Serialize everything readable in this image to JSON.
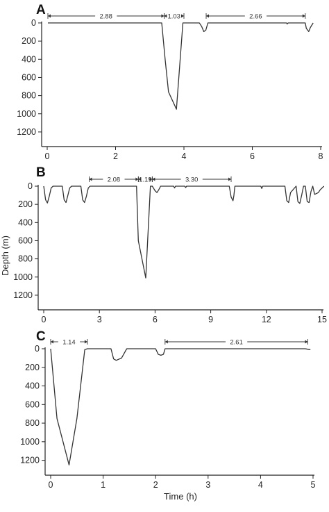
{
  "figure": {
    "ylabel": "Depth (m)",
    "xlabel": "Time (h)"
  },
  "chart_data": [
    {
      "panel": "A",
      "type": "line",
      "xlim": [
        0,
        8
      ],
      "ylim": [
        0,
        1300
      ],
      "y_inverted": true,
      "xticks": [
        0,
        2,
        4,
        6,
        8
      ],
      "yticks": [
        0,
        200,
        400,
        600,
        800,
        1000,
        1200
      ],
      "x": [
        0.02,
        0.5,
        1.0,
        2.0,
        3.0,
        3.35,
        3.45,
        3.55,
        3.78,
        3.97,
        4.0,
        4.45,
        4.52,
        4.58,
        4.64,
        4.7,
        5.5,
        6.5,
        7.0,
        7.02,
        7.05,
        7.55,
        7.58,
        7.65,
        7.7,
        7.78
      ],
      "y": [
        0,
        0,
        0,
        0,
        0,
        0,
        400,
        760,
        950,
        0,
        0,
        0,
        40,
        95,
        80,
        0,
        0,
        0,
        0,
        12,
        0,
        0,
        60,
        95,
        50,
        0
      ],
      "intervals": [
        {
          "start": 0.02,
          "end": 3.42,
          "label": "2.88"
        },
        {
          "start": 3.42,
          "end": 4.0,
          "label": "1.03"
        },
        {
          "start": 4.65,
          "end": 7.55,
          "label": "2.66"
        }
      ]
    },
    {
      "panel": "B",
      "type": "line",
      "xlim": [
        0,
        15
      ],
      "ylim": [
        0,
        1300
      ],
      "y_inverted": true,
      "xticks": [
        0,
        3,
        6,
        9,
        12,
        15
      ],
      "yticks": [
        0,
        200,
        400,
        600,
        800,
        1000,
        1200
      ],
      "x": [
        0.0,
        0.1,
        0.2,
        0.3,
        0.4,
        0.5,
        1.0,
        1.1,
        1.2,
        1.3,
        1.4,
        1.5,
        2.0,
        2.1,
        2.2,
        2.3,
        2.4,
        2.5,
        5.0,
        5.1,
        5.5,
        5.75,
        5.85,
        6.0,
        6.1,
        6.2,
        6.3,
        7.0,
        7.05,
        7.1,
        7.6,
        7.65,
        7.7,
        10.0,
        10.1,
        10.2,
        10.25,
        10.3,
        11.7,
        11.75,
        11.8,
        13.0,
        13.1,
        13.2,
        13.3,
        13.6,
        13.7,
        13.8,
        13.9,
        14.0,
        14.1,
        14.2,
        14.3,
        14.4,
        14.5,
        14.6,
        14.8,
        14.9,
        15.1
      ],
      "y": [
        0,
        150,
        185,
        110,
        20,
        0,
        0,
        150,
        180,
        100,
        20,
        0,
        0,
        150,
        180,
        110,
        20,
        0,
        0,
        600,
        1010,
        0,
        0,
        50,
        70,
        40,
        0,
        0,
        20,
        0,
        0,
        15,
        0,
        0,
        120,
        160,
        100,
        0,
        0,
        25,
        0,
        0,
        160,
        180,
        70,
        0,
        170,
        190,
        100,
        0,
        0,
        170,
        180,
        60,
        0,
        90,
        70,
        40,
        0
      ],
      "intervals": [
        {
          "start": 2.45,
          "end": 5.1,
          "label": "2.08"
        },
        {
          "start": 5.1,
          "end": 5.85,
          "label": "1.19"
        },
        {
          "start": 5.85,
          "end": 10.1,
          "label": "3.30"
        }
      ]
    },
    {
      "panel": "C",
      "type": "line",
      "xlim": [
        0,
        5
      ],
      "ylim": [
        0,
        1300
      ],
      "y_inverted": true,
      "xticks": [
        0,
        1,
        2,
        3,
        4,
        5
      ],
      "yticks": [
        0,
        200,
        400,
        600,
        800,
        1000,
        1200
      ],
      "x": [
        0.0,
        0.12,
        0.35,
        0.5,
        0.65,
        0.7,
        1.15,
        1.2,
        1.25,
        1.35,
        1.45,
        2.0,
        2.05,
        2.1,
        2.15,
        2.18,
        2.2,
        4.85,
        4.9,
        4.95
      ],
      "y": [
        0,
        750,
        1250,
        750,
        10,
        0,
        0,
        110,
        125,
        100,
        0,
        0,
        60,
        70,
        60,
        0,
        0,
        0,
        5,
        10
      ],
      "intervals": [
        {
          "start": 0.0,
          "end": 0.7,
          "label": "1.14"
        },
        {
          "start": 2.18,
          "end": 4.9,
          "label": "2.61"
        }
      ]
    }
  ]
}
